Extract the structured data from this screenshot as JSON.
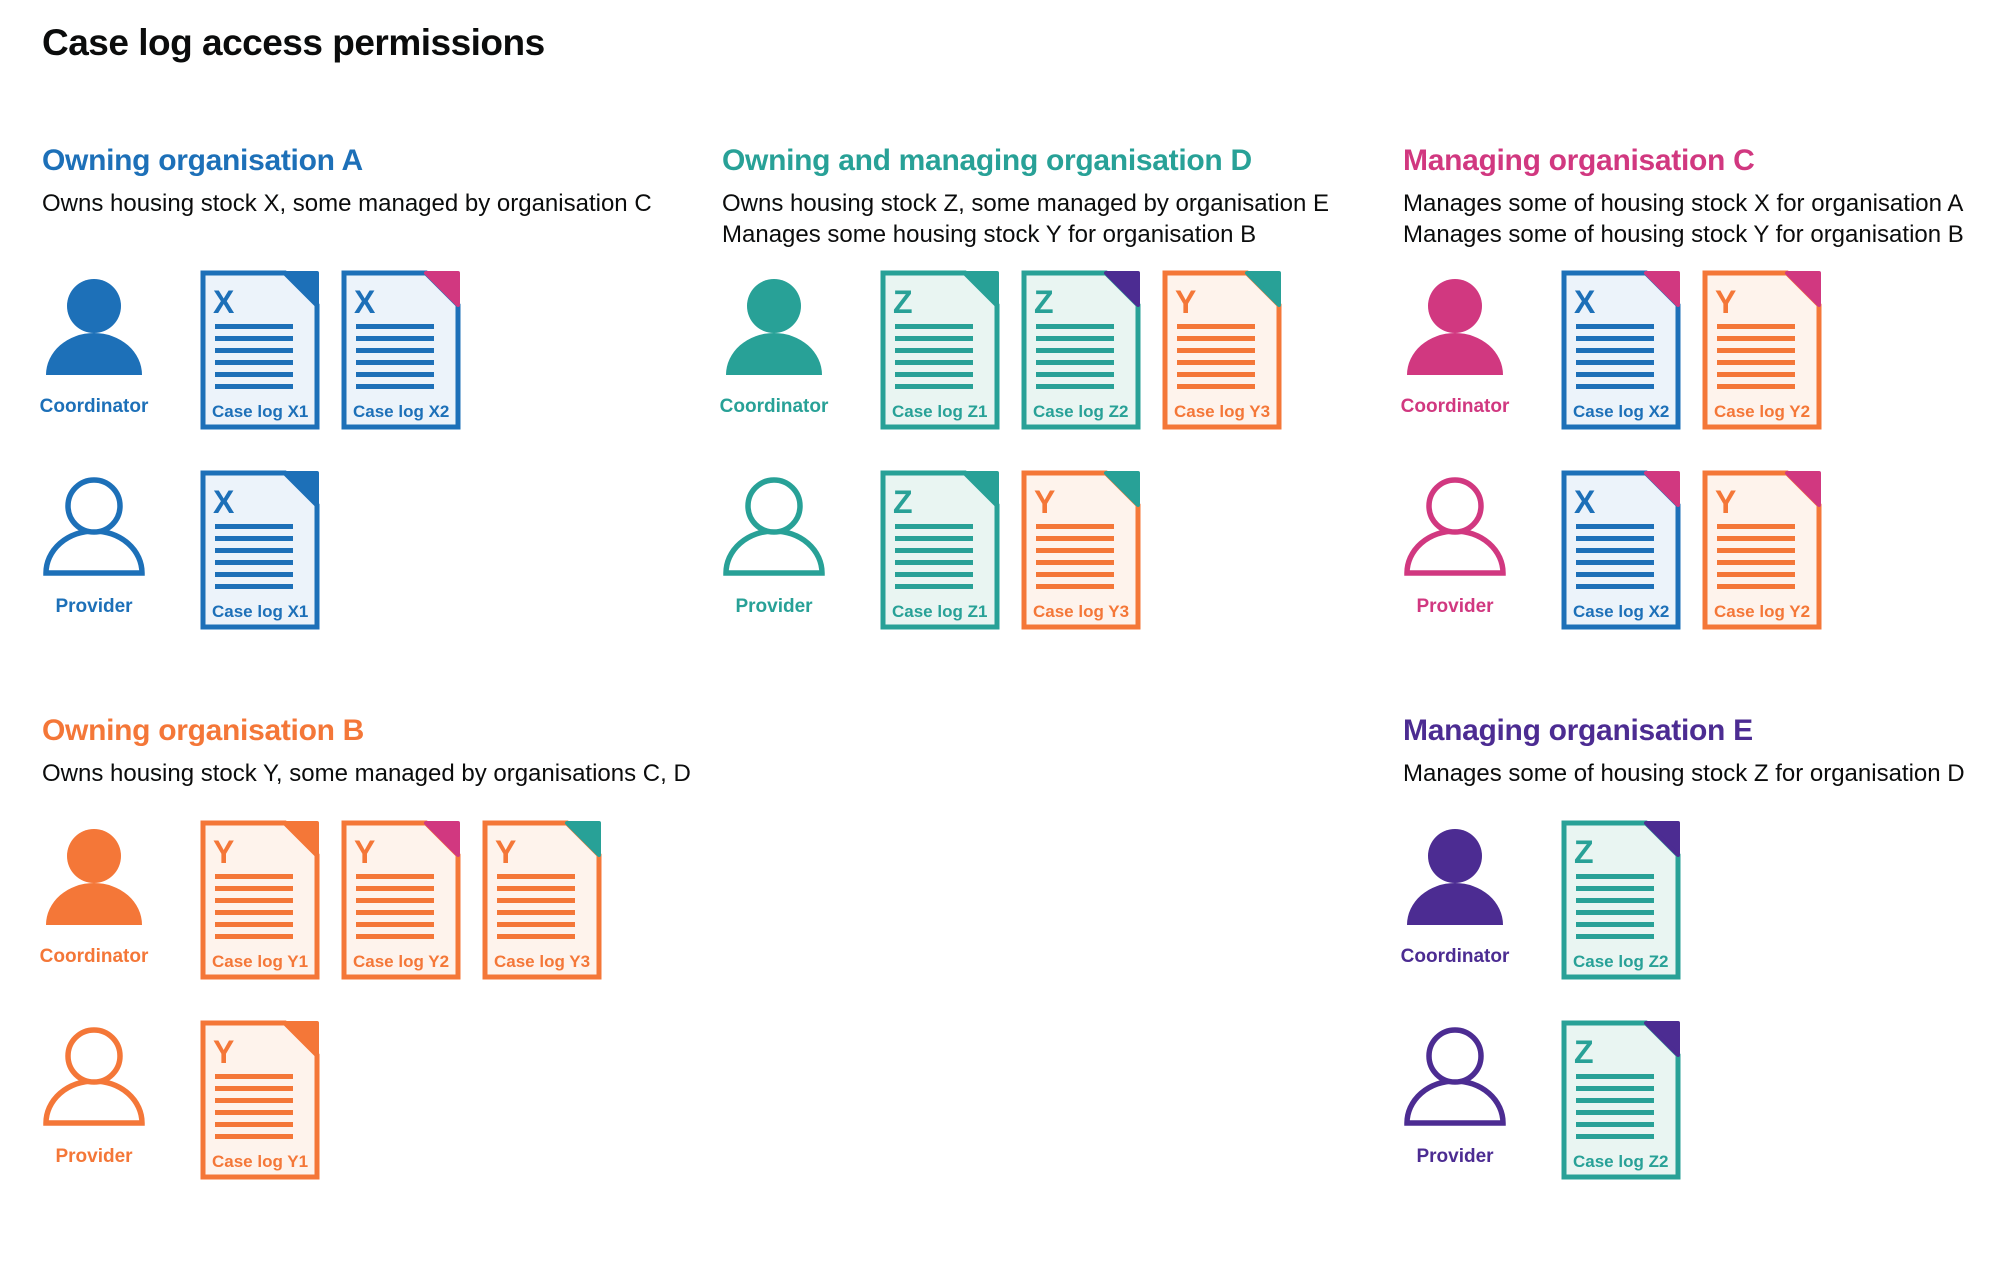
{
  "title": "Case log access permissions",
  "palette": {
    "blue": "#1d70b8",
    "teal": "#28a197",
    "pink": "#d13880",
    "orange": "#f47738",
    "purple": "#4c2c92",
    "text": "#0b0c0c",
    "blue_tint": "#ecf3fa",
    "teal_tint": "#e9f5f2",
    "orange_tint": "#fef3ec"
  },
  "sections": [
    {
      "id": "org-a",
      "heading": "Owning organisation A",
      "color": "blue",
      "description": [
        "Owns housing stock X, some managed by organisation C"
      ],
      "rows": [
        {
          "person_label": "Coordinator",
          "person_style": "filled",
          "docs": [
            {
              "letter": "X",
              "label": "Case log X1",
              "doc_color": "blue",
              "corner_color": "blue"
            },
            {
              "letter": "X",
              "label": "Case log X2",
              "doc_color": "blue",
              "corner_color": "pink"
            }
          ]
        },
        {
          "person_label": "Provider",
          "person_style": "outline",
          "docs": [
            {
              "letter": "X",
              "label": "Case log X1",
              "doc_color": "blue",
              "corner_color": "blue"
            }
          ]
        }
      ]
    },
    {
      "id": "org-d",
      "heading": "Owning and managing organisation D",
      "color": "teal",
      "description": [
        "Owns housing stock Z, some managed by organisation E",
        "Manages some housing stock Y for organisation B"
      ],
      "rows": [
        {
          "person_label": "Coordinator",
          "person_style": "filled",
          "docs": [
            {
              "letter": "Z",
              "label": "Case log Z1",
              "doc_color": "teal",
              "corner_color": "teal"
            },
            {
              "letter": "Z",
              "label": "Case log Z2",
              "doc_color": "teal",
              "corner_color": "purple"
            },
            {
              "letter": "Y",
              "label": "Case log Y3",
              "doc_color": "orange",
              "corner_color": "teal"
            }
          ]
        },
        {
          "person_label": "Provider",
          "person_style": "outline",
          "docs": [
            {
              "letter": "Z",
              "label": "Case log Z1",
              "doc_color": "teal",
              "corner_color": "teal"
            },
            {
              "letter": "Y",
              "label": "Case log Y3",
              "doc_color": "orange",
              "corner_color": "teal"
            }
          ]
        }
      ]
    },
    {
      "id": "org-c",
      "heading": "Managing organisation C",
      "color": "pink",
      "description": [
        "Manages some of housing stock X for organisation A",
        "Manages some of housing stock Y for organisation B"
      ],
      "rows": [
        {
          "person_label": "Coordinator",
          "person_style": "filled",
          "docs": [
            {
              "letter": "X",
              "label": "Case log X2",
              "doc_color": "blue",
              "corner_color": "pink"
            },
            {
              "letter": "Y",
              "label": "Case log Y2",
              "doc_color": "orange",
              "corner_color": "pink"
            }
          ]
        },
        {
          "person_label": "Provider",
          "person_style": "outline",
          "docs": [
            {
              "letter": "X",
              "label": "Case log X2",
              "doc_color": "blue",
              "corner_color": "pink"
            },
            {
              "letter": "Y",
              "label": "Case log Y2",
              "doc_color": "orange",
              "corner_color": "pink"
            }
          ]
        }
      ]
    },
    {
      "id": "org-b",
      "heading": "Owning organisation B",
      "color": "orange",
      "description": [
        "Owns housing stock Y, some managed by organisations C, D"
      ],
      "rows": [
        {
          "person_label": "Coordinator",
          "person_style": "filled",
          "docs": [
            {
              "letter": "Y",
              "label": "Case log Y1",
              "doc_color": "orange",
              "corner_color": "orange"
            },
            {
              "letter": "Y",
              "label": "Case log Y2",
              "doc_color": "orange",
              "corner_color": "pink"
            },
            {
              "letter": "Y",
              "label": "Case log Y3",
              "doc_color": "orange",
              "corner_color": "teal"
            }
          ]
        },
        {
          "person_label": "Provider",
          "person_style": "outline",
          "docs": [
            {
              "letter": "Y",
              "label": "Case log Y1",
              "doc_color": "orange",
              "corner_color": "orange"
            }
          ]
        }
      ]
    },
    {
      "id": "org-e",
      "heading": "Managing organisation E",
      "color": "purple",
      "description": [
        "Manages some of housing stock Z for organisation D"
      ],
      "rows": [
        {
          "person_label": "Coordinator",
          "person_style": "filled",
          "docs": [
            {
              "letter": "Z",
              "label": "Case log Z2",
              "doc_color": "teal",
              "corner_color": "purple"
            }
          ]
        },
        {
          "person_label": "Provider",
          "person_style": "outline",
          "docs": [
            {
              "letter": "Z",
              "label": "Case log Z2",
              "doc_color": "teal",
              "corner_color": "purple"
            }
          ]
        }
      ]
    }
  ]
}
